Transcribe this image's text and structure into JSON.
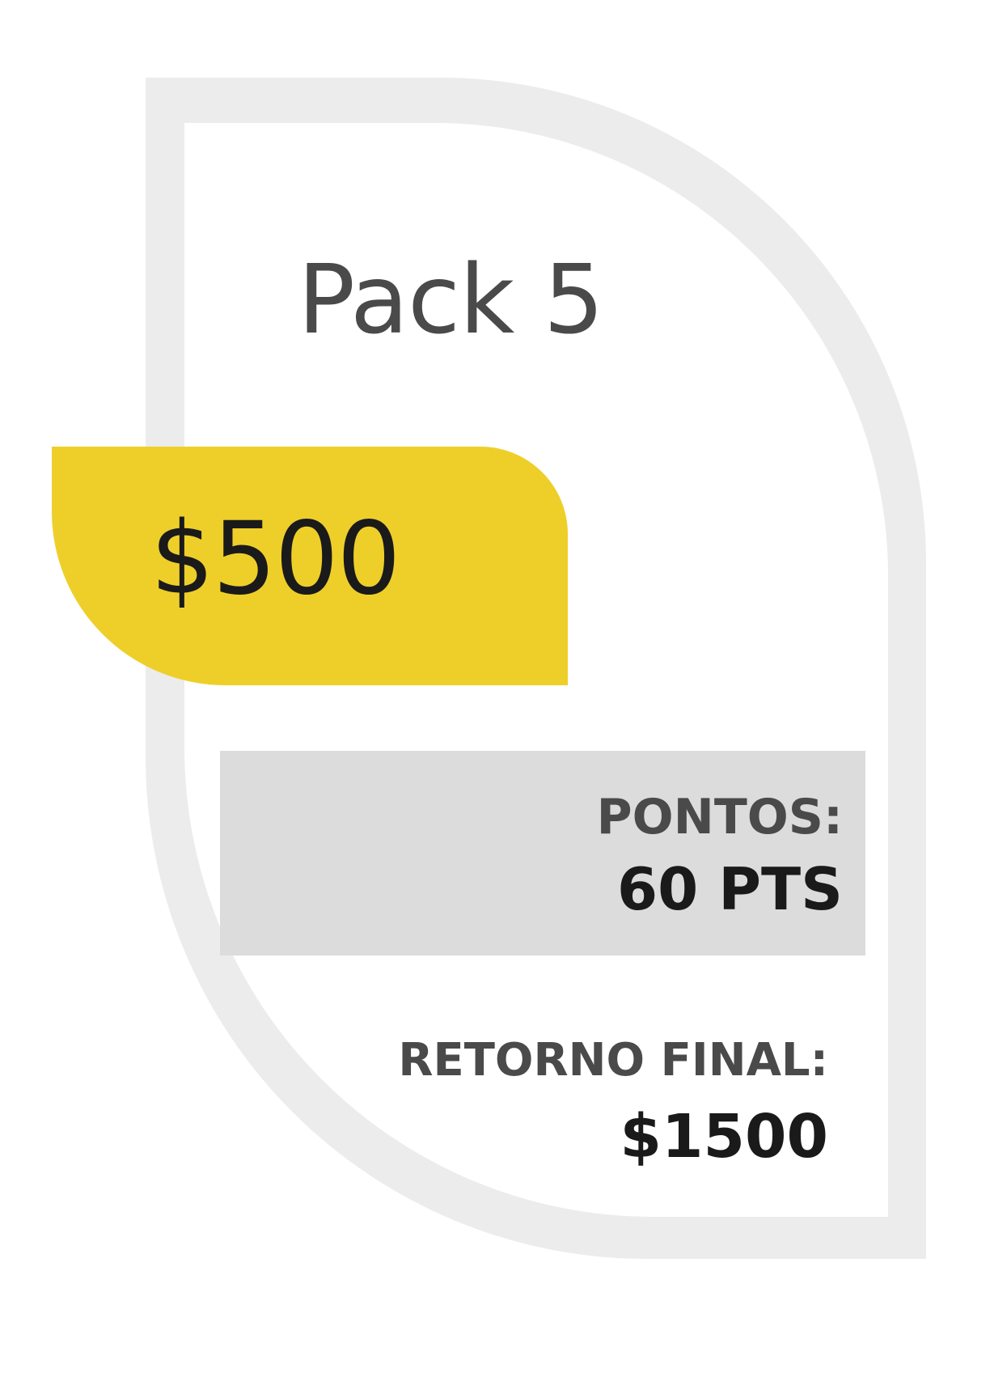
{
  "card": {
    "title": "Pack 5",
    "price": "$500",
    "points": {
      "label": "PONTOS:",
      "value": "60 PTS"
    },
    "return": {
      "label": "RETORNO FINAL:",
      "value": "$1500"
    }
  },
  "colors": {
    "accent_yellow": "#eecf2a",
    "border_gray": "#ececec",
    "points_box_gray": "#dcdcdc",
    "text_dark": "#1a1a1a",
    "text_gray": "#4a4a4a"
  }
}
